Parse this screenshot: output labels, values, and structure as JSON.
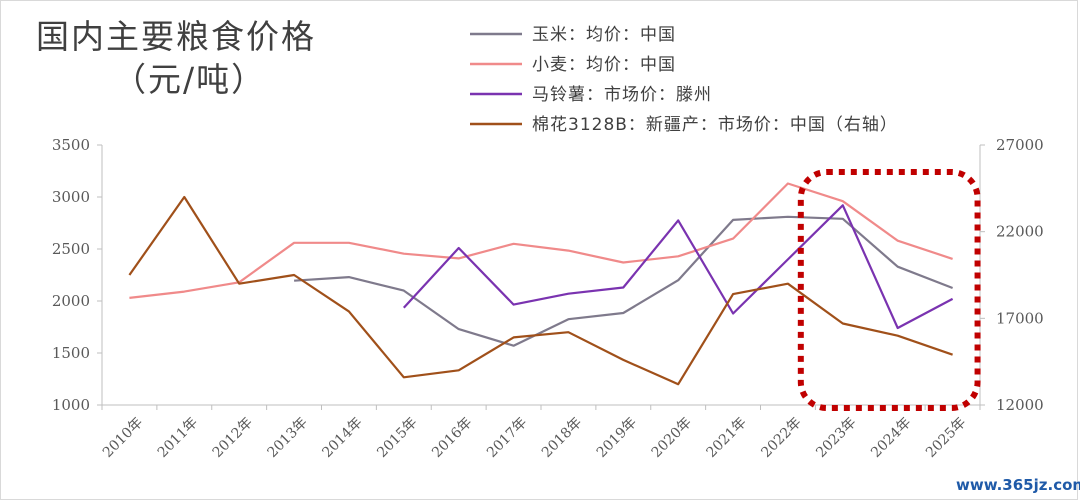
{
  "chart_data": {
    "type": "line",
    "title": "国内主要粮食价格",
    "subtitle": "（元/吨）",
    "categories": [
      "2010年",
      "2011年",
      "2012年",
      "2013年",
      "2014年",
      "2015年",
      "2016年",
      "2017年",
      "2018年",
      "2019年",
      "2020年",
      "2021年",
      "2022年",
      "2023年",
      "2024年",
      "2025年"
    ],
    "y_left": {
      "ylim": [
        1000,
        3500
      ],
      "ticks": [
        1000,
        1500,
        2000,
        2500,
        3000,
        3500
      ]
    },
    "y_right": {
      "ylim": [
        12000,
        27000
      ],
      "ticks": [
        12000,
        17000,
        22000,
        27000
      ]
    },
    "grid": false,
    "legend_position": "top-center",
    "series": [
      {
        "name": "玉米：均价：中国",
        "axis": "left",
        "color": "#7f7a8c",
        "values": [
          null,
          null,
          null,
          2195,
          2230,
          2100,
          1730,
          1570,
          1825,
          1885,
          2200,
          2780,
          2810,
          2790,
          2330,
          2125
        ]
      },
      {
        "name": "小麦：均价：中国",
        "axis": "left",
        "color": "#f08a8a",
        "values": [
          2030,
          2090,
          2180,
          2560,
          2560,
          2455,
          2410,
          2550,
          2485,
          2370,
          2430,
          2600,
          3130,
          2960,
          2580,
          2405
        ]
      },
      {
        "name": "马铃薯：市场价：滕州",
        "axis": "left",
        "color": "#7a33b0",
        "values": [
          null,
          null,
          null,
          null,
          null,
          1935,
          2510,
          1965,
          2070,
          2130,
          2775,
          1880,
          2400,
          2920,
          1740,
          2020
        ]
      },
      {
        "name": "棉花3128B：新疆产：市场价：中国（右轴）",
        "axis": "right",
        "color": "#a0501a",
        "values": [
          19500,
          24000,
          19000,
          19500,
          17400,
          13600,
          14000,
          15900,
          16200,
          14600,
          13200,
          18400,
          19000,
          16700,
          16000,
          14900
        ]
      }
    ],
    "annotation": {
      "type": "dashed-box",
      "color": "#c00000",
      "spans": [
        "2023年",
        "2025年"
      ]
    }
  },
  "watermark": "www.365jz.com"
}
